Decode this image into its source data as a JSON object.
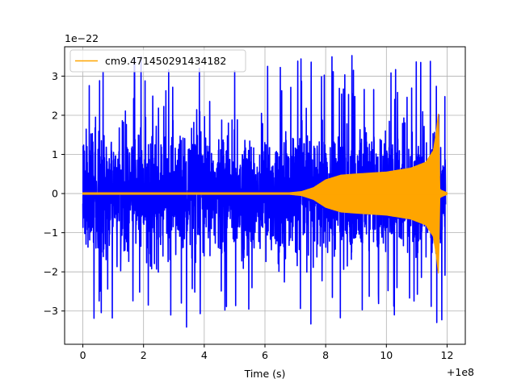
{
  "chart_data": {
    "type": "line",
    "title": "",
    "xlabel": "Time (s)",
    "ylabel": "",
    "x_offset_text": "+1e8",
    "y_scale_text": "1e−22",
    "xlim": [
      -0.6,
      12.6
    ],
    "ylim": [
      -3.85,
      3.75
    ],
    "x_ticks": [
      0,
      2,
      4,
      6,
      8,
      10,
      12
    ],
    "x_tick_labels": [
      "0",
      "2",
      "4",
      "6",
      "8",
      "10",
      "12"
    ],
    "y_ticks": [
      -3,
      -2,
      -1,
      0,
      1,
      2,
      3
    ],
    "y_tick_labels": [
      "−3",
      "−2",
      "−1",
      "0",
      "1",
      "2",
      "3"
    ],
    "grid": true,
    "legend_position": "top-left",
    "series": [
      {
        "name": "",
        "color": "#0000ff",
        "kind": "noise",
        "x_range": [
          0,
          11.95
        ],
        "typical_abs_max": 1.6,
        "peak_abs_max": 3.55
      },
      {
        "name": "cm9.471450291434182",
        "color": "#ffa500",
        "kind": "chirp",
        "envelope": [
          [
            0,
            0.02
          ],
          [
            6.8,
            0.02
          ],
          [
            7.2,
            0.05
          ],
          [
            7.6,
            0.15
          ],
          [
            8.0,
            0.35
          ],
          [
            8.5,
            0.47
          ],
          [
            9.0,
            0.5
          ],
          [
            10.0,
            0.55
          ],
          [
            10.8,
            0.65
          ],
          [
            11.3,
            0.8
          ],
          [
            11.55,
            1.1
          ],
          [
            11.65,
            1.6
          ],
          [
            11.72,
            2.1
          ],
          [
            11.76,
            0.1
          ],
          [
            12.0,
            0.02
          ]
        ]
      }
    ]
  }
}
